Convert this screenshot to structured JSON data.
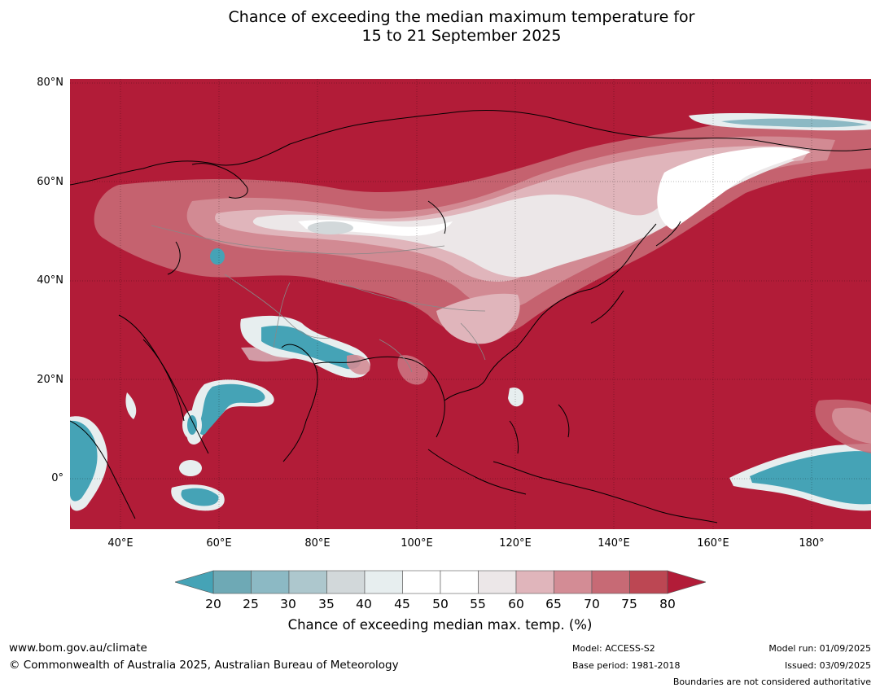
{
  "title": {
    "line1": "Chance of exceeding the median maximum temperature for",
    "line2": "15 to 21 September 2025"
  },
  "map": {
    "lat_labels": [
      "80°N",
      "60°N",
      "40°N",
      "20°N",
      "0°"
    ],
    "lon_labels": [
      "40°E",
      "60°E",
      "80°E",
      "100°E",
      "120°E",
      "140°E",
      "160°E",
      "180°"
    ],
    "ocean_color": "#b21c38"
  },
  "colorbar": {
    "ticks": [
      "20",
      "25",
      "30",
      "35",
      "40",
      "45",
      "50",
      "55",
      "60",
      "65",
      "70",
      "75",
      "80"
    ],
    "colors": [
      "#6ea9b5",
      "#8cb9c4",
      "#adc7cd",
      "#d2d8da",
      "#e7eeef",
      "#ffffff",
      "#ffffff",
      "#ece7e8",
      "#e0b5bb",
      "#d38c95",
      "#c76a75",
      "#bc4753"
    ],
    "under_color": "#45a3b6",
    "over_color": "#b21c38",
    "label": "Chance of exceeding median max. temp. (%)"
  },
  "footer": {
    "website": "www.bom.gov.au/climate",
    "copyright": "© Commonwealth of Australia 2025, Australian Bureau of Meteorology",
    "model": "Model: ACCESS-S2",
    "base_period": "Base period: 1981-2018",
    "model_run": "Model run: 01/09/2025",
    "issued": "Issued: 03/09/2025",
    "disclaimer": "Boundaries are not considered authoritative"
  }
}
